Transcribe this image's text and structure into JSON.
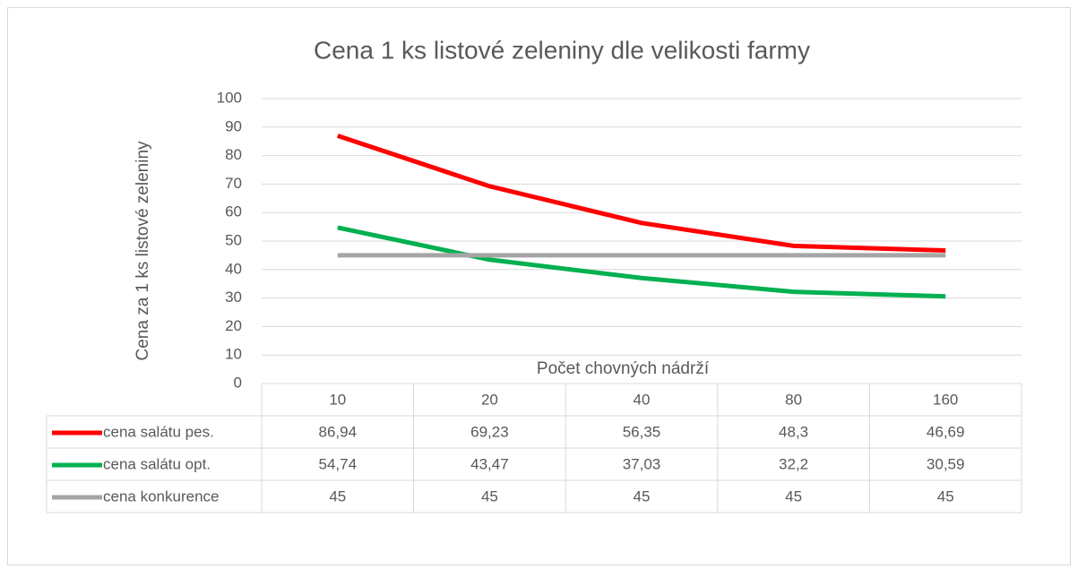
{
  "chart_data": {
    "type": "line",
    "title": "Cena 1 ks listové zeleniny dle velikosti farmy",
    "y_label": "Cena za 1 ks listové zeleniny",
    "x_label": "Počet chovných nádrží",
    "categories": [
      "10",
      "20",
      "40",
      "80",
      "160"
    ],
    "series": [
      {
        "name": "cena salátu pes.",
        "color": "#ff0000",
        "values": [
          86.94,
          69.23,
          56.35,
          48.3,
          46.69
        ],
        "value_labels": [
          "86,94",
          "69,23",
          "56,35",
          "48,3",
          "46,69"
        ]
      },
      {
        "name": "cena salátu opt.",
        "color": "#00b050",
        "values": [
          54.74,
          43.47,
          37.03,
          32.2,
          30.59
        ],
        "value_labels": [
          "54,74",
          "43,47",
          "37,03",
          "32,2",
          "30,59"
        ]
      },
      {
        "name": "cena konkurence",
        "color": "#a5a5a5",
        "values": [
          45,
          45,
          45,
          45,
          45
        ],
        "value_labels": [
          "45",
          "45",
          "45",
          "45",
          "45"
        ]
      }
    ],
    "ylim": [
      0,
      100
    ],
    "yticks": [
      0,
      10,
      20,
      30,
      40,
      50,
      60,
      70,
      80,
      90,
      100
    ],
    "grid": true,
    "data_table": true
  }
}
